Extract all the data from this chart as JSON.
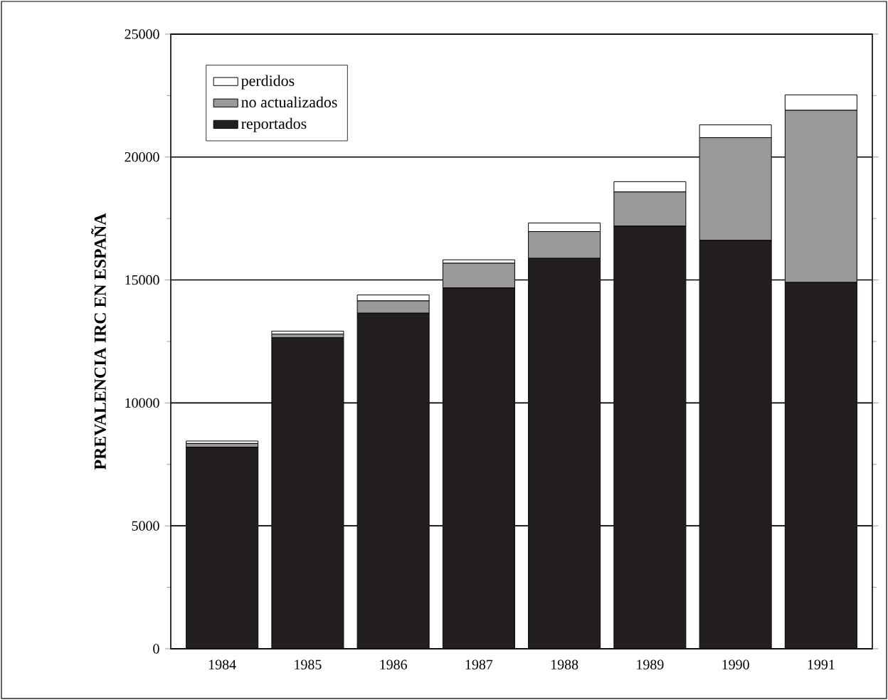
{
  "chart_data": {
    "type": "bar",
    "stacked": true,
    "ylabel": "PREVALENCIA IRC EN ESPAÑA",
    "categories": [
      "1984",
      "1985",
      "1986",
      "1987",
      "1988",
      "1989",
      "1990",
      "1991"
    ],
    "series": [
      {
        "name": "reportados",
        "color": "#231f20",
        "values": [
          8200,
          12650,
          13650,
          14680,
          15880,
          17190,
          16610,
          14900
        ]
      },
      {
        "name": "no actualizados",
        "color": "#9a9a9a",
        "values": [
          150,
          150,
          500,
          1000,
          1090,
          1390,
          4180,
          7000
        ]
      },
      {
        "name": "perdidos",
        "color": "#ffffff",
        "values": [
          100,
          120,
          240,
          140,
          350,
          420,
          520,
          630
        ]
      }
    ],
    "ylim": [
      0,
      25000
    ],
    "yticks": [
      0,
      5000,
      10000,
      15000,
      20000,
      25000
    ],
    "grid": "y",
    "legend": "top left"
  }
}
